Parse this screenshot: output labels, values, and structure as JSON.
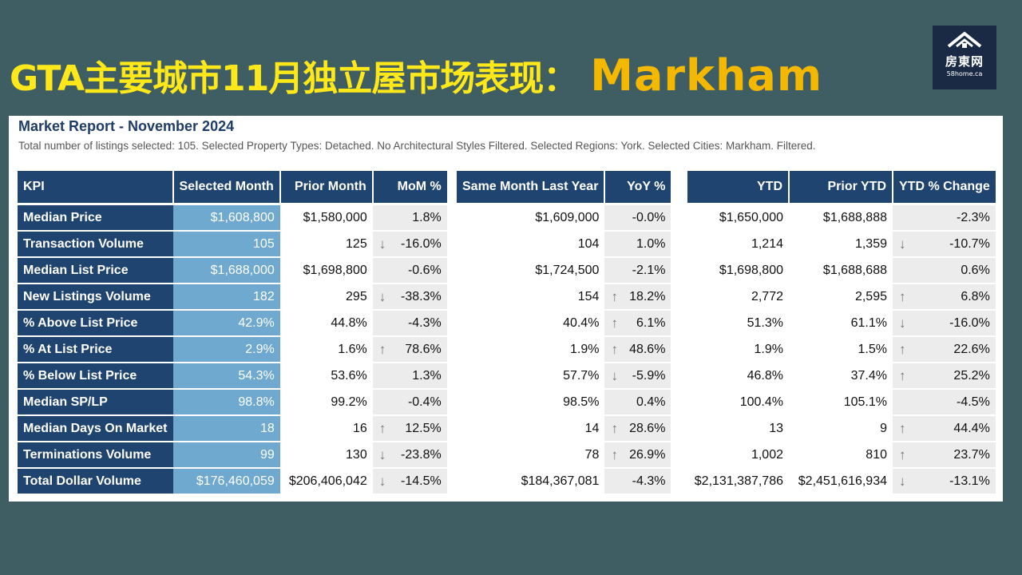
{
  "slide": {
    "title": "GTA主要城市11月独立屋市场表现：",
    "city": "Markham"
  },
  "logo": {
    "brand": "房東网",
    "url": "58home.ca"
  },
  "report": {
    "title": "Market Report - November 2024",
    "description": "Total number of listings selected: 105. Selected Property Types: Detached. No Architectural Styles Filtered. Selected Regions: York. Selected Cities: Markham. Filtered."
  },
  "table1": {
    "headers": [
      "KPI",
      "Selected Month",
      "Prior Month",
      "MoM %"
    ],
    "rows": [
      {
        "kpi": "Median Price",
        "sel": "$1,608,800",
        "prior": "$1,580,000",
        "mom": "1.8%",
        "arrow": ""
      },
      {
        "kpi": "Transaction Volume",
        "sel": "105",
        "prior": "125",
        "mom": "-16.0%",
        "arrow": "down"
      },
      {
        "kpi": "Median List Price",
        "sel": "$1,688,000",
        "prior": "$1,698,800",
        "mom": "-0.6%",
        "arrow": ""
      },
      {
        "kpi": "New Listings Volume",
        "sel": "182",
        "prior": "295",
        "mom": "-38.3%",
        "arrow": "down"
      },
      {
        "kpi": "% Above List Price",
        "sel": "42.9%",
        "prior": "44.8%",
        "mom": "-4.3%",
        "arrow": ""
      },
      {
        "kpi": "% At List Price",
        "sel": "2.9%",
        "prior": "1.6%",
        "mom": "78.6%",
        "arrow": "up"
      },
      {
        "kpi": "% Below List Price",
        "sel": "54.3%",
        "prior": "53.6%",
        "mom": "1.3%",
        "arrow": ""
      },
      {
        "kpi": "Median SP/LP",
        "sel": "98.8%",
        "prior": "99.2%",
        "mom": "-0.4%",
        "arrow": ""
      },
      {
        "kpi": "Median Days On Market",
        "sel": "18",
        "prior": "16",
        "mom": "12.5%",
        "arrow": "up"
      },
      {
        "kpi": "Terminations Volume",
        "sel": "99",
        "prior": "130",
        "mom": "-23.8%",
        "arrow": "down"
      },
      {
        "kpi": "Total Dollar Volume",
        "sel": "$176,460,059",
        "prior": "$206,406,042",
        "mom": "-14.5%",
        "arrow": "down"
      }
    ]
  },
  "table2": {
    "headers": [
      "Same Month Last Year",
      "YoY %"
    ],
    "rows": [
      {
        "val": "$1,609,000",
        "pct": "-0.0%",
        "arrow": ""
      },
      {
        "val": "104",
        "pct": "1.0%",
        "arrow": ""
      },
      {
        "val": "$1,724,500",
        "pct": "-2.1%",
        "arrow": ""
      },
      {
        "val": "154",
        "pct": "18.2%",
        "arrow": "up"
      },
      {
        "val": "40.4%",
        "pct": "6.1%",
        "arrow": "up"
      },
      {
        "val": "1.9%",
        "pct": "48.6%",
        "arrow": "up"
      },
      {
        "val": "57.7%",
        "pct": "-5.9%",
        "arrow": "down"
      },
      {
        "val": "98.5%",
        "pct": "0.4%",
        "arrow": ""
      },
      {
        "val": "14",
        "pct": "28.6%",
        "arrow": "up"
      },
      {
        "val": "78",
        "pct": "26.9%",
        "arrow": "up"
      },
      {
        "val": "$184,367,081",
        "pct": "-4.3%",
        "arrow": ""
      }
    ]
  },
  "table3": {
    "headers": [
      "YTD",
      "Prior YTD",
      "YTD % Change"
    ],
    "rows": [
      {
        "ytd": "$1,650,000",
        "prior": "$1,688,888",
        "pct": "-2.3%",
        "arrow": ""
      },
      {
        "ytd": "1,214",
        "prior": "1,359",
        "pct": "-10.7%",
        "arrow": "down"
      },
      {
        "ytd": "$1,698,800",
        "prior": "$1,688,688",
        "pct": "0.6%",
        "arrow": ""
      },
      {
        "ytd": "2,772",
        "prior": "2,595",
        "pct": "6.8%",
        "arrow": "up"
      },
      {
        "ytd": "51.3%",
        "prior": "61.1%",
        "pct": "-16.0%",
        "arrow": "down"
      },
      {
        "ytd": "1.9%",
        "prior": "1.5%",
        "pct": "22.6%",
        "arrow": "up"
      },
      {
        "ytd": "46.8%",
        "prior": "37.4%",
        "pct": "25.2%",
        "arrow": "up"
      },
      {
        "ytd": "100.4%",
        "prior": "105.1%",
        "pct": "-4.5%",
        "arrow": ""
      },
      {
        "ytd": "13",
        "prior": "9",
        "pct": "44.4%",
        "arrow": "up"
      },
      {
        "ytd": "1,002",
        "prior": "810",
        "pct": "23.7%",
        "arrow": "up"
      },
      {
        "ytd": "$2,131,387,786",
        "prior": "$2,451,616,934",
        "pct": "-13.1%",
        "arrow": "down"
      }
    ]
  },
  "colors": {
    "header_bg": "#1f4470",
    "selected_col": "#6fa9d0",
    "title_yellow": "#ffe81a",
    "city_orange": "#f5b800",
    "background": "#3f5e64"
  },
  "icons": {
    "up": "arrow-up-icon",
    "down": "arrow-down-icon",
    "logo": "house-roof-icon"
  }
}
